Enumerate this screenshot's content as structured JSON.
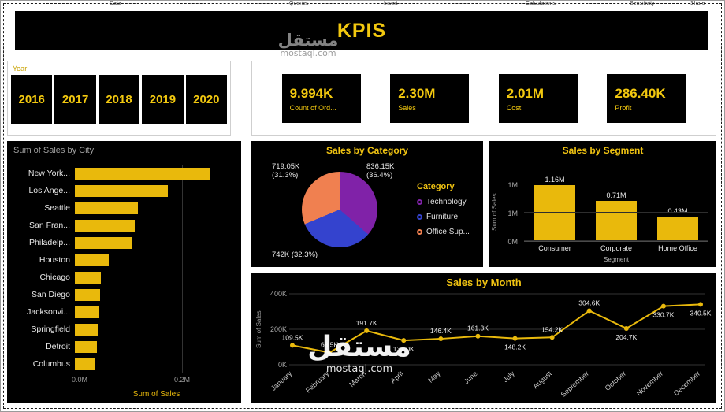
{
  "ribbon": {
    "items": [
      "Data",
      "Queries",
      "Insert",
      "Calculations",
      "Sensitivity",
      "Share"
    ]
  },
  "header": {
    "title": "KPIS"
  },
  "watermark": {
    "arabic": "مستقل",
    "domain": "mostaql.com"
  },
  "year_slicer": {
    "label": "Year",
    "years": [
      "2016",
      "2017",
      "2018",
      "2019",
      "2020"
    ]
  },
  "kpi_cards": [
    {
      "value": "9.994K",
      "label": "Count of Ord..."
    },
    {
      "value": "2.30M",
      "label": "Sales"
    },
    {
      "value": "2.01M",
      "label": "Cost"
    },
    {
      "value": "286.40K",
      "label": "Profit"
    }
  ],
  "colors": {
    "gold": "#E9B90C",
    "gold_text": "#F2C80F",
    "panel_bg": "#000000",
    "technology": "#8022A8",
    "furniture": "#3443CE",
    "office_supplies": "#F08050"
  },
  "chart_data": [
    {
      "type": "bar",
      "orientation": "horizontal",
      "title": "Sum of Sales by City",
      "categories": [
        "New York...",
        "Los Ange...",
        "Seattle",
        "San Fran...",
        "Philadelp...",
        "Houston",
        "Chicago",
        "San Diego",
        "Jacksonvi...",
        "Springfield",
        "Detroit",
        "Columbus"
      ],
      "values_m": [
        0.256,
        0.176,
        0.12,
        0.113,
        0.109,
        0.064,
        0.05,
        0.048,
        0.045,
        0.044,
        0.042,
        0.039
      ],
      "xlabel": "Sum of Sales",
      "x_ticks": [
        "0.0M",
        "0.2M"
      ],
      "xlim_m": [
        0,
        0.3
      ],
      "grid": true
    },
    {
      "type": "pie",
      "title": "Sales by Category",
      "legend_title": "Category",
      "legend_position": "right",
      "slices": [
        {
          "label": "Technology",
          "percent": 36.4,
          "value_text_lines": [
            "836.15K",
            "(36.4%)"
          ],
          "color": "#8022A8"
        },
        {
          "label": "Furniture",
          "percent": 32.3,
          "value_text_lines": [
            "742K (32.3%)"
          ],
          "color": "#3443CE"
        },
        {
          "label": "Office Sup...",
          "percent": 31.3,
          "value_text_lines": [
            "719.05K",
            "(31.3%)"
          ],
          "color": "#F08050"
        }
      ]
    },
    {
      "type": "bar",
      "orientation": "vertical",
      "title": "Sales by Segment",
      "categories": [
        "Consumer",
        "Corporate",
        "Home Office"
      ],
      "values_m": [
        1.16,
        0.71,
        0.43
      ],
      "value_labels": [
        "1.16M",
        "0.71M",
        "0.43M"
      ],
      "xlabel": "Segment",
      "ylabel": "Sum of Sales",
      "y_ticks_top_to_bottom": [
        "1M",
        "1M",
        "0M"
      ],
      "ylim_m": [
        0,
        1.16
      ],
      "grid": true
    },
    {
      "type": "line",
      "title": "Sales by Month",
      "categories": [
        "January",
        "February",
        "March",
        "April",
        "May",
        "June",
        "July",
        "August",
        "September",
        "October",
        "November",
        "December"
      ],
      "values_k": [
        109.5,
        68.5,
        191.7,
        137.0,
        146.4,
        161.3,
        148.2,
        154.2,
        304.6,
        204.7,
        330.7,
        340.5
      ],
      "value_labels": [
        "109.5K",
        "68.5K",
        "191.7K",
        "137.0K",
        "146.4K",
        "161.3K",
        "148.2K",
        "154.2K",
        "304.6K",
        "204.7K",
        "330.7K",
        "340.5K"
      ],
      "label_below": [
        false,
        false,
        false,
        true,
        false,
        false,
        true,
        false,
        false,
        true,
        true,
        true
      ],
      "ylabel": "Sum of Sales",
      "y_ticks_top_to_bottom": [
        "400K",
        "200K",
        "0K"
      ],
      "ylim_k": [
        0,
        400
      ],
      "grid": true
    }
  ]
}
